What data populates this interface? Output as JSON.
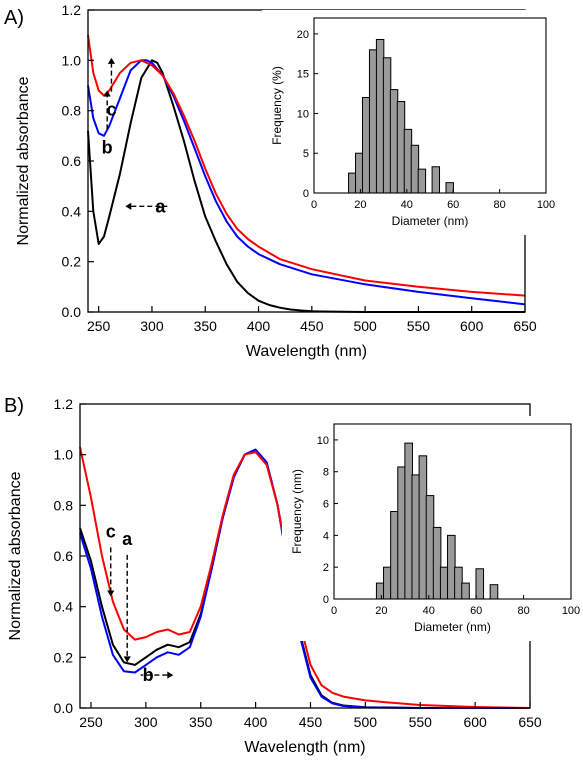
{
  "figure": {
    "panels": [
      {
        "label": "A)"
      },
      {
        "label": "B)"
      }
    ]
  },
  "chart_data": [
    {
      "panel": "A)",
      "type": "line",
      "xlabel": "Wavelength (nm)",
      "ylabel": "Normalized absorbance",
      "xlim": [
        240,
        650
      ],
      "ylim": [
        0,
        1.2
      ],
      "xticks": [
        250,
        300,
        350,
        400,
        450,
        500,
        550,
        600,
        650
      ],
      "yticks": [
        0.0,
        0.2,
        0.4,
        0.6,
        0.8,
        1.0,
        1.2
      ],
      "grid": false,
      "series": [
        {
          "key": "a",
          "color": "#000000",
          "x": [
            240,
            245,
            250,
            255,
            260,
            270,
            280,
            290,
            300,
            305,
            310,
            320,
            330,
            340,
            350,
            360,
            370,
            380,
            390,
            400,
            410,
            420,
            430,
            440,
            450,
            460,
            480,
            500,
            550,
            600,
            650
          ],
          "y": [
            0.72,
            0.4,
            0.27,
            0.3,
            0.38,
            0.55,
            0.75,
            0.93,
            1.0,
            0.99,
            0.95,
            0.82,
            0.68,
            0.52,
            0.38,
            0.28,
            0.19,
            0.12,
            0.075,
            0.045,
            0.028,
            0.017,
            0.01,
            0.006,
            0.003,
            0.002,
            0.001,
            0.0,
            0.0,
            0.0,
            0.0
          ]
        },
        {
          "key": "b",
          "color": "#0000ff",
          "x": [
            240,
            245,
            250,
            255,
            260,
            270,
            280,
            290,
            295,
            300,
            310,
            320,
            330,
            340,
            350,
            360,
            370,
            380,
            390,
            400,
            420,
            450,
            500,
            550,
            600,
            650
          ],
          "y": [
            0.9,
            0.77,
            0.71,
            0.7,
            0.74,
            0.85,
            0.96,
            1.0,
            1.0,
            0.99,
            0.94,
            0.86,
            0.76,
            0.65,
            0.54,
            0.44,
            0.36,
            0.3,
            0.26,
            0.23,
            0.19,
            0.15,
            0.11,
            0.08,
            0.055,
            0.03
          ]
        },
        {
          "key": "c",
          "color": "#ff0000",
          "x": [
            240,
            245,
            250,
            255,
            260,
            270,
            280,
            290,
            295,
            300,
            310,
            320,
            330,
            340,
            350,
            360,
            370,
            380,
            390,
            400,
            420,
            450,
            500,
            550,
            600,
            650
          ],
          "y": [
            1.1,
            0.95,
            0.88,
            0.86,
            0.88,
            0.95,
            0.99,
            1.0,
            0.99,
            0.98,
            0.94,
            0.87,
            0.78,
            0.68,
            0.57,
            0.47,
            0.39,
            0.33,
            0.29,
            0.26,
            0.21,
            0.17,
            0.125,
            0.1,
            0.08,
            0.065
          ]
        }
      ],
      "annotations": [
        {
          "text": "a",
          "x_from": 275,
          "x_to": 322,
          "y": 0.42
        },
        {
          "text": "b",
          "x": 258,
          "y_from": 0.71,
          "y_to": 0.88
        },
        {
          "text": "c",
          "x": 262,
          "y_from": 0.86,
          "y_to": 1.01
        }
      ],
      "inset": {
        "type": "bar",
        "xlabel": "Diameter (nm)",
        "ylabel": "Frequency (%)",
        "xlim": [
          0,
          100
        ],
        "ylim": [
          0,
          22
        ],
        "xticks": [
          0,
          20,
          40,
          60,
          80,
          100
        ],
        "yticks": [
          0,
          5,
          10,
          15,
          20
        ],
        "bin_width": 3.2,
        "bars": {
          "centers": [
            16.5,
            19.5,
            22.5,
            25.5,
            28.5,
            31.5,
            34.5,
            37.5,
            40.5,
            43.5,
            46.5,
            49.5,
            52.5,
            55.5,
            58.5
          ],
          "values": [
            2.5,
            5,
            12,
            18,
            19.3,
            17,
            13,
            11.5,
            8,
            6,
            3,
            0,
            3.3,
            0,
            1.3
          ]
        }
      }
    },
    {
      "panel": "B)",
      "type": "line",
      "xlabel": "Wavelength (nm)",
      "ylabel": "Normalized absorbance",
      "xlim": [
        240,
        650
      ],
      "ylim": [
        0,
        1.2
      ],
      "xticks": [
        250,
        300,
        350,
        400,
        450,
        500,
        550,
        600,
        650
      ],
      "yticks": [
        0.0,
        0.2,
        0.4,
        0.6,
        0.8,
        1.0,
        1.2
      ],
      "grid": false,
      "series": [
        {
          "key": "a",
          "color": "#000000",
          "x": [
            240,
            250,
            260,
            270,
            280,
            290,
            300,
            310,
            320,
            330,
            340,
            350,
            360,
            370,
            380,
            390,
            400,
            410,
            420,
            430,
            440,
            450,
            460,
            470,
            480,
            500,
            550,
            600,
            650
          ],
          "y": [
            0.71,
            0.58,
            0.4,
            0.25,
            0.18,
            0.17,
            0.2,
            0.23,
            0.25,
            0.24,
            0.26,
            0.37,
            0.55,
            0.75,
            0.91,
            1.0,
            1.02,
            0.97,
            0.8,
            0.55,
            0.3,
            0.13,
            0.05,
            0.02,
            0.01,
            0.003,
            0.0,
            0.0,
            0.0
          ]
        },
        {
          "key": "b",
          "color": "#0000ff",
          "x": [
            240,
            250,
            260,
            270,
            280,
            290,
            300,
            310,
            320,
            330,
            340,
            350,
            360,
            370,
            380,
            390,
            400,
            410,
            420,
            430,
            440,
            450,
            460,
            470,
            480,
            500,
            550,
            600,
            650
          ],
          "y": [
            0.69,
            0.55,
            0.36,
            0.21,
            0.145,
            0.14,
            0.17,
            0.2,
            0.22,
            0.21,
            0.24,
            0.36,
            0.55,
            0.75,
            0.91,
            1.0,
            1.02,
            0.97,
            0.8,
            0.55,
            0.29,
            0.12,
            0.045,
            0.018,
            0.008,
            0.002,
            0.0,
            0.0,
            0.0
          ]
        },
        {
          "key": "c",
          "color": "#ff0000",
          "x": [
            240,
            250,
            260,
            270,
            280,
            290,
            300,
            310,
            320,
            330,
            340,
            350,
            360,
            370,
            380,
            390,
            400,
            410,
            420,
            430,
            440,
            450,
            460,
            470,
            480,
            500,
            520,
            550,
            600,
            650
          ],
          "y": [
            1.03,
            0.83,
            0.6,
            0.42,
            0.31,
            0.27,
            0.28,
            0.3,
            0.31,
            0.29,
            0.3,
            0.4,
            0.57,
            0.76,
            0.92,
            1.0,
            1.01,
            0.96,
            0.8,
            0.57,
            0.34,
            0.17,
            0.09,
            0.06,
            0.045,
            0.03,
            0.022,
            0.012,
            0.004,
            0.0
          ]
        }
      ],
      "annotations": [
        {
          "text": "a",
          "x": 283,
          "y_from": 0.62,
          "y_to": 0.18
        },
        {
          "text": "b",
          "x_from": 325,
          "x_to": 288,
          "y": 0.13
        },
        {
          "text": "c",
          "x": 268,
          "y_from": 0.65,
          "y_to": 0.44
        }
      ],
      "inset": {
        "type": "bar",
        "xlabel": "Diameter (nm)",
        "ylabel": "Frequency (nm)",
        "xlim": [
          0,
          100
        ],
        "ylim": [
          0,
          11
        ],
        "xticks": [
          0,
          20,
          40,
          60,
          80,
          100
        ],
        "yticks": [
          0,
          2,
          4,
          6,
          8,
          10
        ],
        "bin_width": 3.2,
        "bars": {
          "centers": [
            19.5,
            22.5,
            25.5,
            28.5,
            31.5,
            34.5,
            37.5,
            40.5,
            43.5,
            46.5,
            49.5,
            52.5,
            55.5,
            58.5,
            61.5,
            64.5,
            67.5
          ],
          "values": [
            1,
            2,
            5.5,
            8.3,
            9.8,
            7.8,
            9,
            6.5,
            4.5,
            2,
            4,
            2,
            1,
            0,
            1.9,
            0,
            0.9
          ]
        }
      }
    }
  ]
}
